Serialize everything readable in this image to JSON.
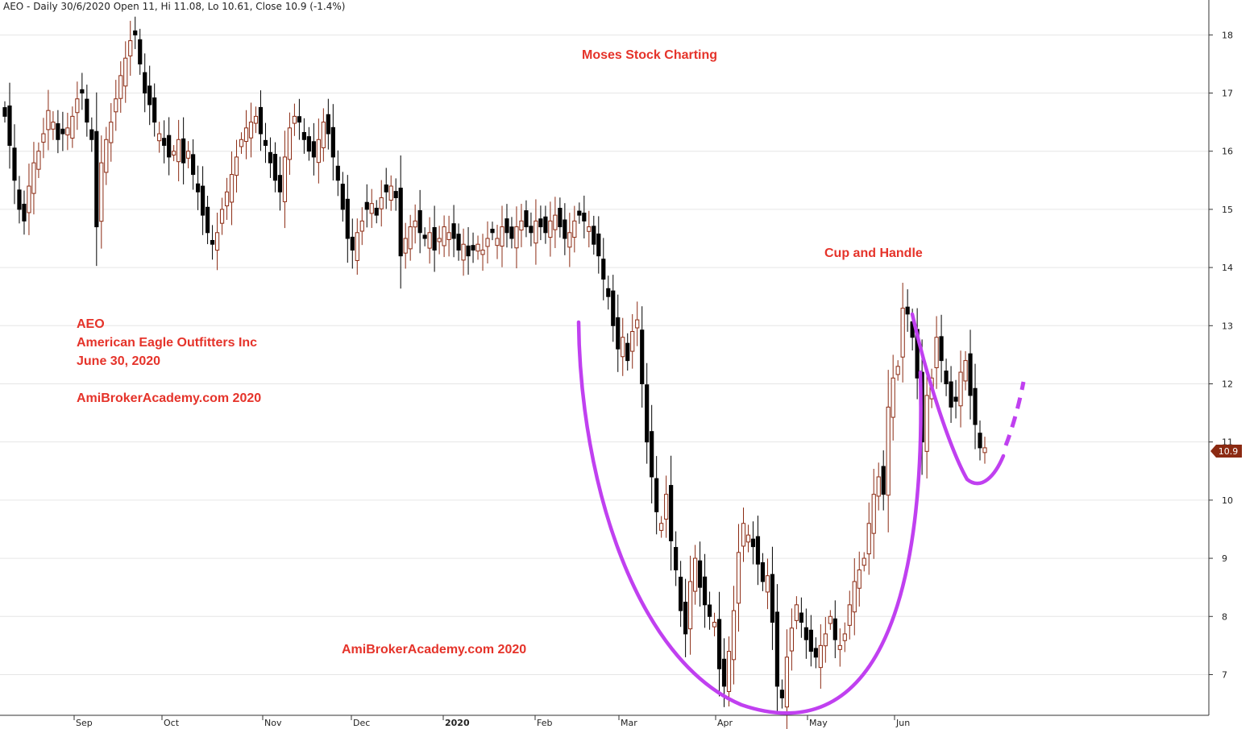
{
  "header": {
    "text": "AEO - Daily 30/6/2020 Open 11, Hi 11.08, Lo 10.61, Close 10.9 (-1.4%)"
  },
  "annotations": {
    "title": "Moses Stock Charting",
    "pattern": "Cup and Handle",
    "ticker": "AEO",
    "company": "American Eagle Outfitters Inc",
    "date": "June 30, 2020",
    "watermark_left": "AmiBrokerAcademy.com 2020",
    "watermark_bottom": "AmiBrokerAcademy.com  2020"
  },
  "price_label": "10.9",
  "colors": {
    "bull_candle": "#8b2a12",
    "bear_candle": "#000000",
    "grid": "#e6e6e6",
    "axis": "#333333",
    "annotation": "#e5332a",
    "pattern_curve": "#c040f0",
    "price_label_bg": "#8b2a12"
  },
  "chart_data": {
    "type": "candlestick",
    "ticker": "AEO",
    "ylim": [
      6.3,
      18.6
    ],
    "y_ticks": [
      7,
      8,
      9,
      10,
      11,
      12,
      13,
      14,
      15,
      16,
      17,
      18
    ],
    "x_tick_labels": [
      "Sep",
      "Oct",
      "Nov",
      "Dec",
      "2020",
      "Feb",
      "Mar",
      "Apr",
      "May",
      "Jun"
    ],
    "last_close": 10.9,
    "closes": [
      16.6,
      16.1,
      15.5,
      15.0,
      14.8,
      15.4,
      15.8,
      16.0,
      16.3,
      16.7,
      16.5,
      16.2,
      16.3,
      16.4,
      16.6,
      16.9,
      17.0,
      16.5,
      16.2,
      14.7,
      15.8,
      16.2,
      16.5,
      16.9,
      17.3,
      17.6,
      17.9,
      18.0,
      17.5,
      17.0,
      16.8,
      16.5,
      16.3,
      16.1,
      15.9,
      16.0,
      16.2,
      15.8,
      16.0,
      15.6,
      15.3,
      14.9,
      14.6,
      14.4,
      14.6,
      15.0,
      15.3,
      15.6,
      15.9,
      16.2,
      16.4,
      16.5,
      16.6,
      16.3,
      16.1,
      15.8,
      15.5,
      15.3,
      15.9,
      16.4,
      16.6,
      16.5,
      16.2,
      16.0,
      15.9,
      16.2,
      16.5,
      16.3,
      15.9,
      15.5,
      15.0,
      14.5,
      14.3,
      14.6,
      14.8,
      15.0,
      15.1,
      14.9,
      15.2,
      15.3,
      15.4,
      15.2,
      14.2,
      14.5,
      14.7,
      14.8,
      14.6,
      14.5,
      14.6,
      14.3,
      14.5,
      14.7,
      14.6,
      14.5,
      14.3,
      14.4,
      14.2,
      14.3,
      14.4,
      14.3,
      14.5,
      14.6,
      14.5,
      14.7,
      14.6,
      14.5,
      14.7,
      14.8,
      14.7,
      14.6,
      14.8,
      14.7,
      14.6,
      14.8,
      14.9,
      14.7,
      14.5,
      14.6,
      14.8,
      14.9,
      14.8,
      14.7,
      14.4,
      14.2,
      13.8,
      13.5,
      13.0,
      12.6,
      12.8,
      12.4,
      12.9,
      13.1,
      12.0,
      11.0,
      10.4,
      9.8,
      9.6,
      10.1,
      9.3,
      8.8,
      8.1,
      7.7,
      8.6,
      9.0,
      8.5,
      8.2,
      8.0,
      7.9,
      7.1,
      6.8,
      7.4,
      8.1,
      9.1,
      9.6,
      9.4,
      9.2,
      8.9,
      8.6,
      8.7,
      7.9,
      6.8,
      6.6,
      7.3,
      7.8,
      8.2,
      7.9,
      7.6,
      7.4,
      7.3,
      7.5,
      7.7,
      8.0,
      7.6,
      7.5,
      7.7,
      8.2,
      8.6,
      8.8,
      9.0,
      9.6,
      10.1,
      10.4,
      10.1,
      11.6,
      12.1,
      12.3,
      13.3,
      13.2,
      12.8,
      12.1,
      11.0,
      11.8,
      12.1,
      12.8,
      12.4,
      12.0,
      11.6,
      11.7,
      12.2,
      12.4,
      11.8,
      11.3,
      10.9,
      10.9
    ]
  }
}
